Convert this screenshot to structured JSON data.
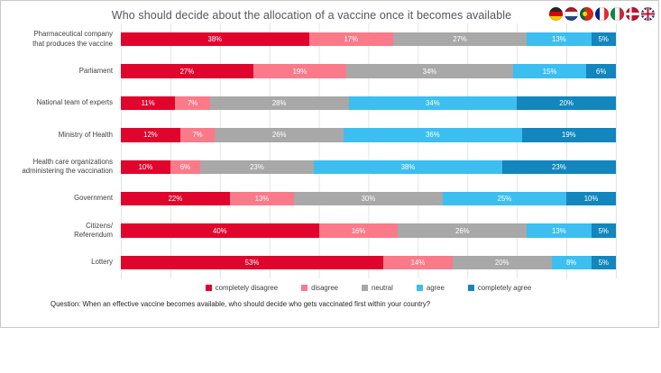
{
  "title": "Who should decide about the allocation of a vaccine once it becomes available",
  "question": "Question: When an effective vaccine becomes available, who should decide who gets vaccinated first within your country?",
  "flags": [
    {
      "country": "Germany",
      "slug": "germany"
    },
    {
      "country": "Netherlands",
      "slug": "netherlands"
    },
    {
      "country": "Portugal",
      "slug": "portugal"
    },
    {
      "country": "France",
      "slug": "france"
    },
    {
      "country": "Italy",
      "slug": "italy"
    },
    {
      "country": "Denmark",
      "slug": "denmark"
    },
    {
      "country": "United Kingdom",
      "slug": "uk"
    }
  ],
  "chart_data": {
    "type": "bar",
    "stacked": true,
    "orientation": "horizontal",
    "title": "Who should decide about the allocation of a vaccine once it becomes available",
    "categories": [
      "Pharmaceutical company\nthat produces the vaccine",
      "Parliament",
      "National team of experts",
      "Ministry of Health",
      "Health care organizations\nadministering the vaccination",
      "Government",
      "Citizens/\nReferendum",
      "Lottery"
    ],
    "series": [
      {
        "name": "completely disagree",
        "slug": "completely-disagree",
        "color": "#e0052d",
        "values": [
          38,
          27,
          11,
          12,
          10,
          22,
          40,
          53
        ]
      },
      {
        "name": "disagree",
        "slug": "disagree",
        "color": "#fa7a8a",
        "values": [
          17,
          19,
          7,
          7,
          6,
          13,
          16,
          14
        ]
      },
      {
        "name": "neutral",
        "slug": "neutral",
        "color": "#a8a8a8",
        "values": [
          27,
          34,
          28,
          26,
          23,
          30,
          26,
          20
        ]
      },
      {
        "name": "agree",
        "slug": "agree",
        "color": "#3cbef0",
        "values": [
          13,
          15,
          34,
          36,
          38,
          25,
          13,
          8
        ]
      },
      {
        "name": "completely agree",
        "slug": "completely-agree",
        "color": "#1286bd",
        "values": [
          5,
          6,
          20,
          19,
          23,
          10,
          5,
          5
        ]
      }
    ],
    "xlim": [
      0,
      100
    ],
    "grid": "vertical gridlines every 10%",
    "legend_position": "bottom",
    "value_suffix": "%",
    "value_labels": "inside segments, white"
  }
}
